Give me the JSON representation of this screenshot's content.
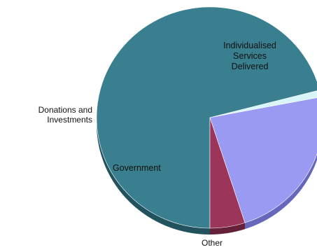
{
  "chart_data": {
    "type": "pie",
    "style": "3d-tilted",
    "slices": [
      {
        "label": "Individualised Services Delivered",
        "lines": [
          "Individualised",
          "Services",
          "Delivered"
        ],
        "value": 71,
        "color": "#3a7f8f",
        "side_color": "#21525e"
      },
      {
        "label": "Other",
        "lines": [
          "Other"
        ],
        "value": 1,
        "color": "#d8f6fa",
        "side_color": "#9fc4c9"
      },
      {
        "label": "Government",
        "lines": [
          "Government"
        ],
        "value": 23,
        "color": "#9a9af2",
        "side_color": "#6666bb"
      },
      {
        "label": "Donations and Investments",
        "lines": [
          "Donations and",
          "Investments"
        ],
        "value": 5,
        "color": "#9b3559",
        "side_color": "#65203a"
      }
    ],
    "legend": "none"
  }
}
